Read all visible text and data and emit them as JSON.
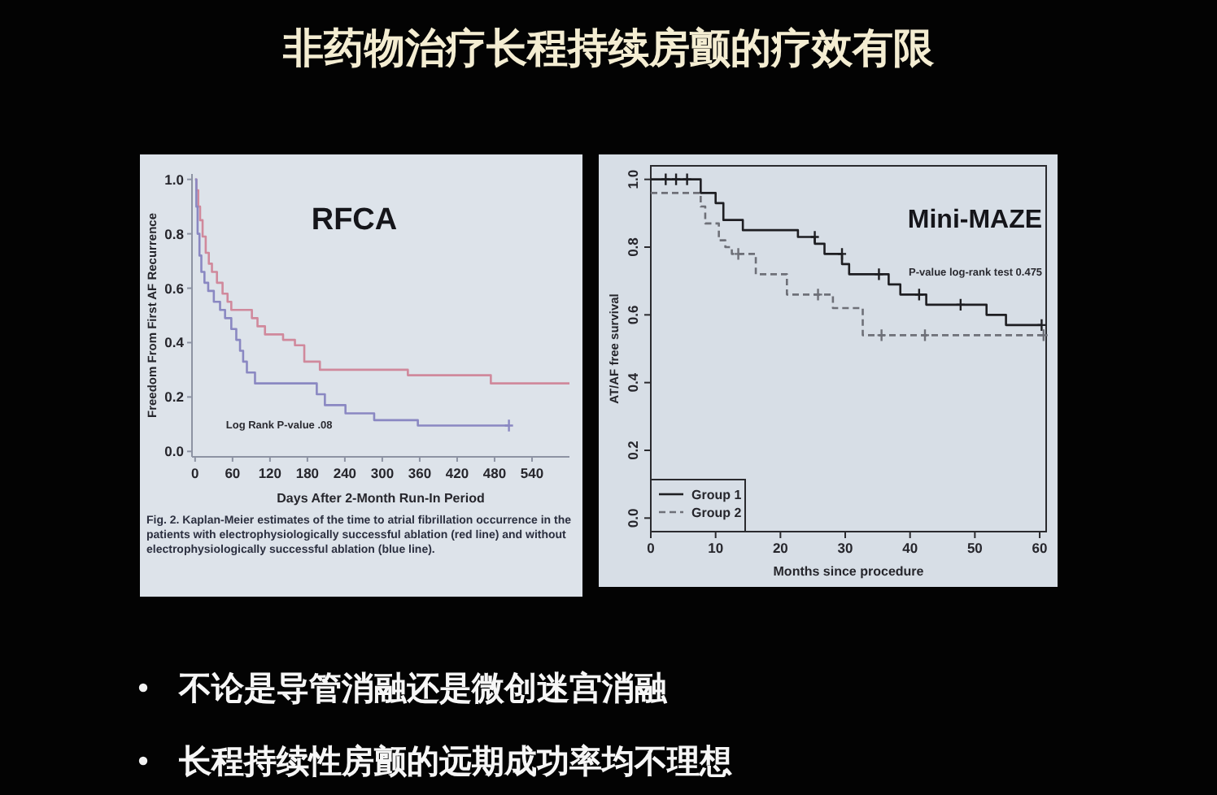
{
  "chart_data": [
    {
      "type": "other",
      "title": "非药物治疗长程持续房颤的疗效有限"
    },
    {
      "type": "step",
      "title": "RFCA",
      "xlabel": "Days After 2-Month Run-In Period",
      "ylabel": "Freedom From First AF Recurrence",
      "annotations": [
        "Log Rank P-value .08",
        "Fig. 2. Kaplan-Meier estimates of the time to atrial fibrillation occurrence in the patients with electrophysiologically successful ablation (red line) and without electrophysiologically successful ablation (blue line)."
      ],
      "xlim": [
        -5,
        600
      ],
      "ylim": [
        -0.02,
        1.02
      ],
      "xticks": [
        0,
        60,
        120,
        180,
        240,
        300,
        360,
        420,
        480,
        540
      ],
      "yticks": [
        {
          "value": 0,
          "label": "0.0"
        },
        {
          "value": 0.2,
          "label": "0.2"
        },
        {
          "value": 0.4,
          "label": "0.4"
        },
        {
          "value": 0.6,
          "label": "0.6"
        },
        {
          "value": 0.8,
          "label": "0.8"
        },
        {
          "value": 1,
          "label": "1.0"
        }
      ],
      "series": [
        {
          "color": "#d0899c",
          "x": [
            0,
            2,
            5,
            8,
            12,
            17,
            22,
            27,
            35,
            44,
            52,
            58,
            91,
            100,
            112,
            141,
            160,
            175,
            200,
            341,
            474,
            600
          ],
          "values": [
            1,
            0.96,
            0.9,
            0.85,
            0.79,
            0.73,
            0.69,
            0.66,
            0.62,
            0.58,
            0.55,
            0.52,
            0.49,
            0.46,
            0.43,
            0.41,
            0.39,
            0.33,
            0.3,
            0.28,
            0.25,
            0.25
          ]
        },
        {
          "color": "#8a88c2",
          "x": [
            0,
            2,
            4,
            7,
            10,
            15,
            21,
            30,
            40,
            48,
            58,
            66,
            72,
            77,
            83,
            96,
            195,
            208,
            241,
            287,
            357,
            503
          ],
          "values": [
            1,
            0.9,
            0.8,
            0.72,
            0.66,
            0.62,
            0.59,
            0.55,
            0.52,
            0.49,
            0.45,
            0.41,
            0.37,
            0.33,
            0.29,
            0.25,
            0.21,
            0.17,
            0.14,
            0.115,
            0.095,
            0.095
          ]
        },
        {
          "type": "scatter",
          "marker": "cross",
          "color": "#8a88c2",
          "x": [
            503
          ],
          "values": [
            0.095
          ]
        }
      ]
    },
    {
      "type": "step",
      "title": "Mini-MAZE",
      "xlabel": "Months since procedure",
      "ylabel": "AT/AF free survival",
      "annotations": [
        "P-value log-rank test 0.475"
      ],
      "xlim": [
        0,
        61
      ],
      "ylim": [
        -0.04,
        1.04
      ],
      "xticks": [
        0,
        10,
        20,
        30,
        40,
        50,
        60
      ],
      "yticks": [
        {
          "value": 0,
          "label": "0.0"
        },
        {
          "value": 0.2,
          "label": "0.2"
        },
        {
          "value": 0.4,
          "label": "0.4"
        },
        {
          "value": 0.6,
          "label": "0.6"
        },
        {
          "value": 0.8,
          "label": "0.8"
        },
        {
          "value": 1,
          "label": "1.0"
        }
      ],
      "legend": "bottom left",
      "series": [
        {
          "name": "Group 1",
          "color": "#1e1e22",
          "line_style": "solid",
          "x": [
            0,
            7.7,
            10,
            11.2,
            14.2,
            22.7,
            25.3,
            26.8,
            29.5,
            30.6,
            36.7,
            38.5,
            42.5,
            51.8,
            54.8,
            60.3
          ],
          "values": [
            1,
            0.96,
            0.93,
            0.88,
            0.85,
            0.83,
            0.81,
            0.78,
            0.75,
            0.72,
            0.69,
            0.66,
            0.63,
            0.6,
            0.57,
            0.57
          ]
        },
        {
          "name": "Group 2",
          "color": "#6e7078",
          "line_style": "dashed",
          "x": [
            0,
            7.7,
            8.4,
            10.5,
            11.5,
            12.5,
            16.2,
            21,
            28.1,
            32.7,
            61
          ],
          "values": [
            0.96,
            0.92,
            0.87,
            0.82,
            0.8,
            0.78,
            0.72,
            0.66,
            0.62,
            0.54,
            0.54
          ]
        },
        {
          "type": "scatter",
          "marker": "cross",
          "color": "#1e1e22",
          "x": [
            2.3,
            3.9,
            5.6,
            25.3,
            29.5,
            35.2,
            41.4,
            47.8,
            60.3
          ],
          "values": [
            1,
            1,
            1,
            0.83,
            0.78,
            0.72,
            0.66,
            0.63,
            0.57
          ]
        },
        {
          "type": "scatter",
          "marker": "cross",
          "color": "#6e7078",
          "x": [
            13.5,
            25.8,
            35.6,
            42.3,
            60.6
          ],
          "values": [
            0.78,
            0.66,
            0.54,
            0.54,
            0.54
          ]
        }
      ]
    },
    {
      "type": "other",
      "annotations": [
        "不论是导管消融还是微创迷宫消融",
        "长程持续性房颤的远期成功率均不理想"
      ]
    }
  ]
}
